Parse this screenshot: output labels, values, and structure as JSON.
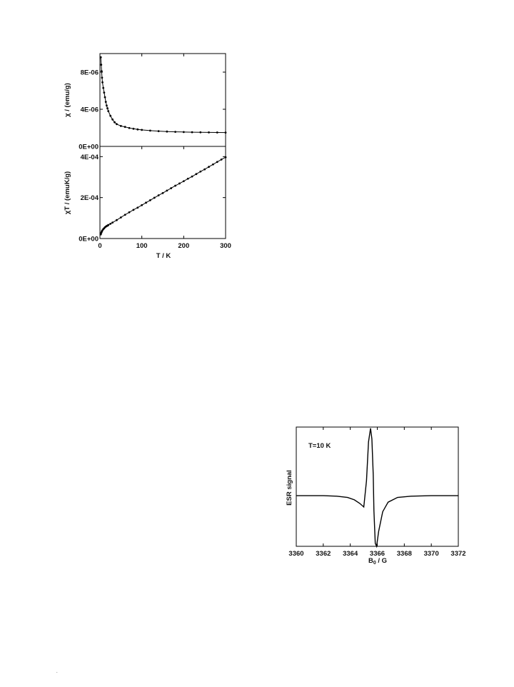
{
  "chart_data": [
    {
      "id": "chi",
      "type": "scatter",
      "title": "",
      "xlabel": "",
      "ylabel": "χ / (emu/g)",
      "xlim": [
        0,
        300
      ],
      "ylim": [
        0,
        1e-05
      ],
      "xticks": [],
      "yticks": [
        {
          "value": 0,
          "label": "0E+00"
        },
        {
          "value": 4e-06,
          "label": "4E-06"
        },
        {
          "value": 8e-06,
          "label": "8E-06"
        }
      ],
      "series": [
        {
          "x": [
            2,
            3,
            4,
            5,
            6,
            8,
            10,
            12,
            14,
            16,
            18,
            20,
            25,
            30,
            35,
            40,
            50,
            60,
            70,
            80,
            90,
            100,
            120,
            140,
            160,
            180,
            200,
            220,
            240,
            260,
            280,
            300
          ],
          "y": [
            9.6e-06,
            8.8e-06,
            8.1e-06,
            7.4e-06,
            6.9e-06,
            6.3e-06,
            5.8e-06,
            5.3e-06,
            4.8e-06,
            4.4e-06,
            4.1e-06,
            3.8e-06,
            3.3e-06,
            2.9e-06,
            2.6e-06,
            2.4e-06,
            2.2e-06,
            2.1e-06,
            1.98e-06,
            1.9e-06,
            1.83e-06,
            1.78e-06,
            1.7e-06,
            1.64e-06,
            1.6e-06,
            1.57e-06,
            1.55e-06,
            1.53e-06,
            1.52e-06,
            1.51e-06,
            1.5e-06,
            1.49e-06
          ]
        }
      ],
      "grid": false,
      "legend": "none"
    },
    {
      "id": "chiT",
      "type": "scatter",
      "title": "",
      "xlabel": "T / K",
      "ylabel": "χT / (emuK/g)",
      "xlim": [
        0,
        300
      ],
      "ylim": [
        0,
        0.00045
      ],
      "xticks": [
        {
          "value": 0,
          "label": "0"
        },
        {
          "value": 100,
          "label": "100"
        },
        {
          "value": 200,
          "label": "200"
        },
        {
          "value": 300,
          "label": "300"
        }
      ],
      "yticks": [
        {
          "value": 0,
          "label": "0E+00"
        },
        {
          "value": 0.0002,
          "label": "2E-04"
        },
        {
          "value": 0.0004,
          "label": "4E-04"
        }
      ],
      "series": [
        {
          "x": [
            2,
            3,
            4,
            5,
            6,
            8,
            10,
            12,
            14,
            16,
            18,
            20,
            25,
            30,
            40,
            50,
            60,
            70,
            80,
            90,
            100,
            110,
            120,
            130,
            140,
            150,
            160,
            170,
            180,
            190,
            200,
            210,
            220,
            230,
            240,
            250,
            260,
            270,
            280,
            290,
            300
          ],
          "y": [
            2e-05,
            2.7e-05,
            3.2e-05,
            3.7e-05,
            4e-05,
            4.6e-05,
            5e-05,
            5.5e-05,
            5.8e-05,
            6.1e-05,
            6.3e-05,
            6.6e-05,
            7.2e-05,
            7.8e-05,
            9e-05,
            0.000103,
            0.000116,
            0.000128,
            0.00014,
            0.000151,
            0.000163,
            0.000175,
            0.000187,
            0.000199,
            0.000211,
            0.000222,
            0.000234,
            0.000246,
            0.000258,
            0.000269,
            0.00028,
            0.000292,
            0.000303,
            0.000315,
            0.000327,
            0.000338,
            0.00035,
            0.000362,
            0.000374,
            0.000386,
            0.000397
          ]
        }
      ],
      "grid": false,
      "legend": "none"
    },
    {
      "id": "esr",
      "type": "line",
      "title": "",
      "annotation": "T=10 K",
      "xlabel_main": "B",
      "xlabel_sub": "0",
      "xlabel_rest": " / G",
      "ylabel": "ESR signal",
      "xlim": [
        3360,
        3372
      ],
      "ylim": [
        -1,
        1
      ],
      "xticks": [
        {
          "value": 3360,
          "label": "3360"
        },
        {
          "value": 3362,
          "label": "3362"
        },
        {
          "value": 3364,
          "label": "3364"
        },
        {
          "value": 3366,
          "label": "3366"
        },
        {
          "value": 3368,
          "label": "3368"
        },
        {
          "value": 3370,
          "label": "3370"
        },
        {
          "value": 3372,
          "label": "3372"
        }
      ],
      "yticks": [],
      "series": [
        {
          "x": [
            3360,
            3362,
            3363,
            3363.8,
            3364.3,
            3364.7,
            3365,
            3365.2,
            3365.35,
            3365.5,
            3365.6,
            3365.7,
            3365.75,
            3365.85,
            3365.95,
            3366.1,
            3366.4,
            3366.8,
            3367.5,
            3368.5,
            3370,
            3372
          ],
          "y": [
            -0.15,
            -0.15,
            -0.16,
            -0.18,
            -0.22,
            -0.28,
            -0.34,
            0.1,
            0.75,
            0.98,
            0.8,
            0.2,
            -0.4,
            -0.95,
            -1.0,
            -0.75,
            -0.42,
            -0.26,
            -0.18,
            -0.16,
            -0.15,
            -0.15
          ]
        }
      ],
      "grid": false,
      "legend": "none"
    }
  ]
}
